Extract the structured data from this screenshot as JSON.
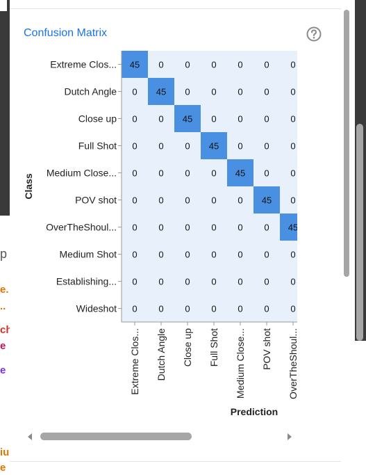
{
  "panel": {
    "title": "Confusion Matrix",
    "help_icon": "help-circle-icon"
  },
  "background_fragments": [
    {
      "text": "p",
      "color": "#555555"
    },
    {
      "text": "e.",
      "color": "#e37400"
    },
    {
      "text": "..",
      "color": "#e37400"
    },
    {
      "text": "ch",
      "color": "#d93025"
    },
    {
      "text": "e",
      "color": "#c2185b"
    },
    {
      "text": "e",
      "color": "#7b2ff7"
    },
    {
      "text": "iu",
      "color": "#e37400"
    },
    {
      "text": "e",
      "color": "#e37400"
    }
  ],
  "chart_data": {
    "type": "heatmap",
    "title": "",
    "xlabel": "Prediction",
    "ylabel": "Class",
    "rows": [
      "Extreme Clos...",
      "Dutch Angle",
      "Close up",
      "Full Shot",
      "Medium Close...",
      "POV shot",
      "OverTheShoul...",
      "Medium Shot",
      "Establishing...",
      "Wideshot"
    ],
    "columns": [
      "Extreme Clos...",
      "Dutch Angle",
      "Close up",
      "Full Shot",
      "Medium Close...",
      "POV shot",
      "OverTheShoul..."
    ],
    "values": [
      [
        45,
        0,
        0,
        0,
        0,
        0,
        0
      ],
      [
        0,
        45,
        0,
        0,
        0,
        0,
        0
      ],
      [
        0,
        0,
        45,
        0,
        0,
        0,
        0
      ],
      [
        0,
        0,
        0,
        45,
        0,
        0,
        0
      ],
      [
        0,
        0,
        0,
        0,
        45,
        0,
        0
      ],
      [
        0,
        0,
        0,
        0,
        0,
        45,
        0
      ],
      [
        0,
        0,
        0,
        0,
        0,
        0,
        45
      ],
      [
        0,
        0,
        0,
        0,
        0,
        0,
        0
      ],
      [
        0,
        0,
        0,
        0,
        0,
        0,
        0
      ],
      [
        0,
        0,
        0,
        0,
        0,
        0,
        0
      ]
    ],
    "colors": {
      "high": "#4a90e2",
      "low": "#e8f1fb"
    }
  }
}
